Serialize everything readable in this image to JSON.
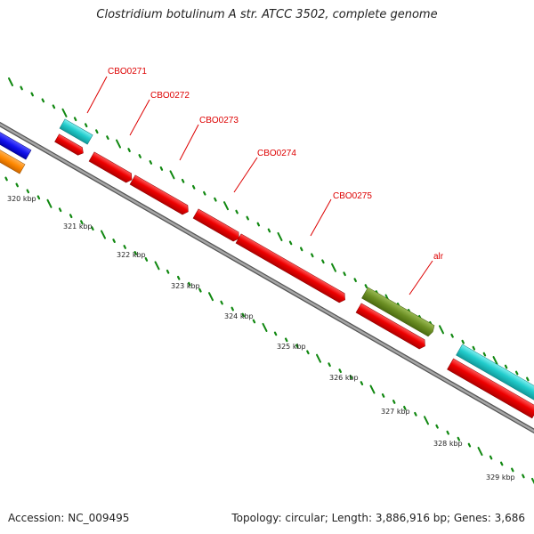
{
  "title": "Clostridium botulinum A str. ATCC 3502, complete genome",
  "accession": "Accession: NC_009495",
  "summary": "Topology: circular; Length: 3,886,916 bp; Genes: 3,686",
  "kbp_ticks": [
    "320 kbp",
    "321 kbp",
    "322 kbp",
    "323 kbp",
    "324 kbp",
    "325 kbp",
    "326 kbp",
    "327 kbp",
    "328 kbp",
    "329 kbp"
  ],
  "gene_labels": [
    "CBO0271",
    "CBO0272",
    "CBO0273",
    "CBO0274",
    "CBO0275",
    "alr"
  ],
  "colors": {
    "backbone": "#8c8c8c",
    "tick": "#118811",
    "gene_red": "#ee0000",
    "gene_cyan": "#22cccc",
    "gene_blue": "#1111ee",
    "gene_orange": "#ff8800",
    "gene_olive": "#6b8e23",
    "label_red": "#dd0000"
  }
}
